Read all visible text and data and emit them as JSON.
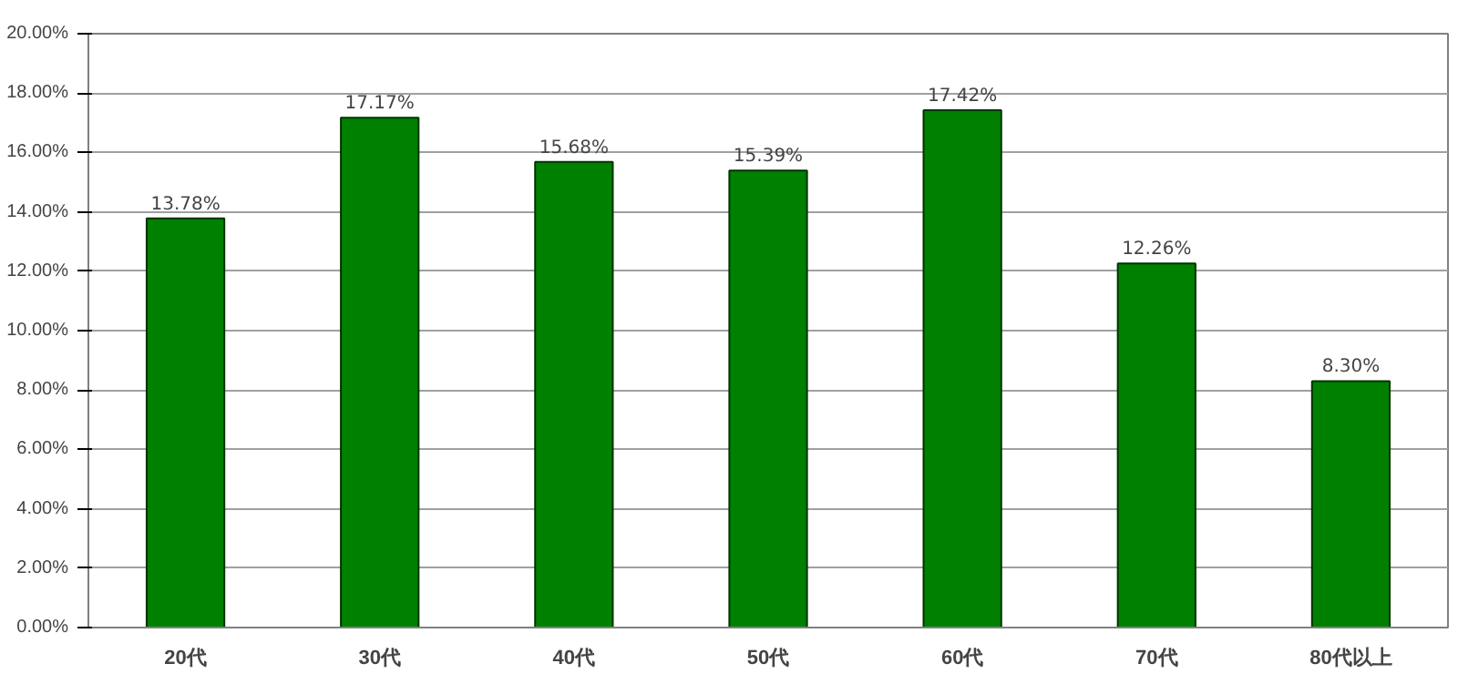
{
  "chart_data": {
    "type": "bar",
    "categories": [
      "20代",
      "30代",
      "40代",
      "50代",
      "60代",
      "70代",
      "80代以上"
    ],
    "values": [
      13.78,
      17.17,
      15.68,
      15.39,
      17.42,
      12.26,
      8.3
    ],
    "value_labels": [
      "13.78%",
      "17.17%",
      "15.68%",
      "15.39%",
      "17.42%",
      "12.26%",
      "8.30%"
    ],
    "color": "#008000",
    "ylim": [
      0,
      20
    ],
    "yticks": [
      {
        "value": 0,
        "label": "0.00%"
      },
      {
        "value": 2,
        "label": "2.00%"
      },
      {
        "value": 4,
        "label": "4.00%"
      },
      {
        "value": 6,
        "label": "6.00%"
      },
      {
        "value": 8,
        "label": "8.00%"
      },
      {
        "value": 10,
        "label": "10.00%"
      },
      {
        "value": 12,
        "label": "12.00%"
      },
      {
        "value": 14,
        "label": "14.00%"
      },
      {
        "value": 16,
        "label": "16.00%"
      },
      {
        "value": 18,
        "label": "18.00%"
      },
      {
        "value": 20,
        "label": "20.00%"
      }
    ],
    "grid": "y"
  }
}
